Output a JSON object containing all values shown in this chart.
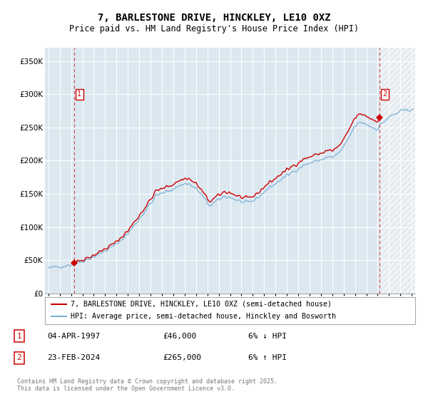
{
  "title": "7, BARLESTONE DRIVE, HINCKLEY, LE10 0XZ",
  "subtitle": "Price paid vs. HM Land Registry's House Price Index (HPI)",
  "sale1_date": "04-APR-1997",
  "sale1_price": 46000,
  "sale1_label": "6% ↓ HPI",
  "sale2_date": "23-FEB-2024",
  "sale2_price": 265000,
  "sale2_label": "6% ↑ HPI",
  "legend1": "7, BARLESTONE DRIVE, HINCKLEY, LE10 0XZ (semi-detached house)",
  "legend2": "HPI: Average price, semi-detached house, Hinckley and Bosworth",
  "footer": "Contains HM Land Registry data © Crown copyright and database right 2025.\nThis data is licensed under the Open Government Licence v3.0.",
  "hpi_color": "#7bafd4",
  "price_color": "#cc0000",
  "vline_color": "#cc0000",
  "plot_bg": "#dce8f0",
  "grid_color": "#ffffff",
  "ylim": [
    0,
    370000
  ],
  "xlim_start": 1994.7,
  "xlim_end": 2027.3,
  "yticks": [
    0,
    50000,
    100000,
    150000,
    200000,
    250000,
    300000,
    350000
  ],
  "ytick_labels": [
    "£0",
    "£50K",
    "£100K",
    "£150K",
    "£200K",
    "£250K",
    "£300K",
    "£350K"
  ],
  "sale1_year": 1997.25,
  "sale2_year": 2024.15,
  "hatch_start": 2024.15,
  "hatch_end": 2027.3
}
